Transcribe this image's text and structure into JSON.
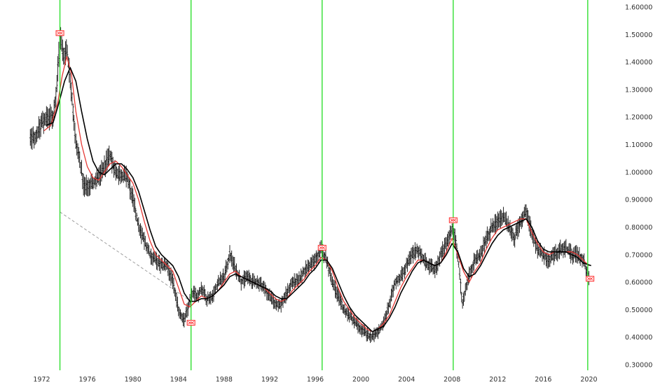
{
  "chart_data": {
    "type": "line",
    "title": "",
    "xlabel": "",
    "ylabel": "",
    "x_ticks": [
      "1972",
      "1976",
      "1980",
      "1984",
      "1988",
      "1992",
      "1996",
      "2000",
      "2004",
      "2008",
      "2012",
      "2016",
      "2020"
    ],
    "y_ticks": [
      "0.300000",
      "0.400000",
      "0.500000",
      "0.600000",
      "0.700000",
      "0.800000",
      "0.900000",
      "1.000000",
      "1.100000",
      "1.200000",
      "1.300000",
      "1.400000",
      "1.500000",
      "1.600000"
    ],
    "xlim": [
      1970.8,
      2021.2
    ],
    "ylim": [
      0.3,
      1.6
    ],
    "grid": false,
    "legend": "none",
    "colors": {
      "price": "#111111",
      "fast_ma": "#e53935",
      "slow_ma": "#000000",
      "cycle_lines": "#22dd22",
      "trendline": "#9e9e9e",
      "markers": "#ff3333"
    },
    "series": [
      {
        "role": "price",
        "x": [
          1971.0,
          1971.5,
          1972.0,
          1972.5,
          1973.0,
          1973.3,
          1973.6,
          1973.9,
          1974.2,
          1974.6,
          1975.0,
          1975.3,
          1975.7,
          1976.0,
          1976.5,
          1977.0,
          1977.5,
          1978.0,
          1978.5,
          1979.0,
          1979.5,
          1980.0,
          1980.5,
          1981.0,
          1981.5,
          1982.0,
          1982.5,
          1983.0,
          1983.5,
          1984.0,
          1984.5,
          1985.0,
          1985.3,
          1985.7,
          1986.0,
          1986.5,
          1987.0,
          1987.5,
          1988.0,
          1988.5,
          1989.0,
          1989.5,
          1990.0,
          1990.5,
          1991.0,
          1991.5,
          1992.0,
          1992.5,
          1993.0,
          1993.5,
          1994.0,
          1994.5,
          1995.0,
          1995.5,
          1996.0,
          1996.5,
          1997.0,
          1997.5,
          1998.0,
          1998.5,
          1999.0,
          1999.5,
          2000.0,
          2000.5,
          2001.0,
          2001.5,
          2002.0,
          2002.5,
          2003.0,
          2003.5,
          2004.0,
          2004.5,
          2005.0,
          2005.5,
          2006.0,
          2006.5,
          2007.0,
          2007.5,
          2008.0,
          2008.3,
          2008.6,
          2008.9,
          2009.2,
          2009.6,
          2010.0,
          2010.5,
          2011.0,
          2011.5,
          2012.0,
          2012.5,
          2013.0,
          2013.5,
          2014.0,
          2014.5,
          2015.0,
          2015.5,
          2016.0,
          2016.5,
          2017.0,
          2017.5,
          2018.0,
          2018.5,
          2019.0,
          2019.5,
          2020.0
        ],
        "y": [
          1.12,
          1.13,
          1.18,
          1.2,
          1.2,
          1.3,
          1.5,
          1.42,
          1.45,
          1.3,
          1.1,
          1.05,
          0.95,
          0.95,
          0.96,
          0.98,
          1.02,
          1.06,
          1.0,
          0.99,
          0.98,
          0.9,
          0.8,
          0.75,
          0.7,
          0.68,
          0.66,
          0.66,
          0.6,
          0.5,
          0.46,
          0.53,
          0.56,
          0.55,
          0.58,
          0.54,
          0.55,
          0.6,
          0.62,
          0.7,
          0.65,
          0.6,
          0.62,
          0.6,
          0.6,
          0.58,
          0.55,
          0.52,
          0.52,
          0.56,
          0.6,
          0.6,
          0.64,
          0.66,
          0.68,
          0.72,
          0.68,
          0.6,
          0.55,
          0.5,
          0.48,
          0.45,
          0.43,
          0.41,
          0.4,
          0.42,
          0.45,
          0.52,
          0.6,
          0.62,
          0.66,
          0.7,
          0.72,
          0.68,
          0.66,
          0.64,
          0.7,
          0.74,
          0.8,
          0.75,
          0.66,
          0.52,
          0.58,
          0.64,
          0.68,
          0.7,
          0.76,
          0.8,
          0.82,
          0.84,
          0.8,
          0.76,
          0.82,
          0.86,
          0.78,
          0.72,
          0.7,
          0.68,
          0.7,
          0.72,
          0.72,
          0.7,
          0.7,
          0.68,
          0.62
        ]
      },
      {
        "role": "fast_ma",
        "x": [
          1972.2,
          1972.8,
          1973.4,
          1973.8,
          1974.2,
          1974.6,
          1975.0,
          1975.5,
          1976.0,
          1976.5,
          1977.0,
          1977.5,
          1978.0,
          1978.5,
          1979.0,
          1979.5,
          1980.0,
          1980.5,
          1981.0,
          1981.5,
          1982.0,
          1982.5,
          1983.0,
          1983.5,
          1984.0,
          1984.5,
          1985.0,
          1985.5,
          1986.0,
          1986.5,
          1987.0,
          1987.5,
          1988.0,
          1988.5,
          1989.0,
          1989.5,
          1990.0,
          1990.5,
          1991.0,
          1991.5,
          1992.0,
          1992.5,
          1993.0,
          1993.5,
          1994.0,
          1994.5,
          1995.0,
          1995.5,
          1996.0,
          1996.5,
          1997.0,
          1997.5,
          1998.0,
          1998.5,
          1999.0,
          1999.5,
          2000.0,
          2000.5,
          2001.0,
          2001.5,
          2002.0,
          2002.5,
          2003.0,
          2003.5,
          2004.0,
          2004.5,
          2005.0,
          2005.5,
          2006.0,
          2006.5,
          2007.0,
          2007.5,
          2008.0,
          2008.5,
          2009.0,
          2009.5,
          2010.0,
          2010.5,
          2011.0,
          2011.5,
          2012.0,
          2012.5,
          2013.0,
          2013.5,
          2014.0,
          2014.5,
          2015.0,
          2015.5,
          2016.0,
          2016.5,
          2017.0,
          2017.5,
          2018.0,
          2018.5,
          2019.0,
          2019.5,
          2020.0
        ],
        "y": [
          1.15,
          1.17,
          1.25,
          1.35,
          1.42,
          1.36,
          1.22,
          1.1,
          1.02,
          0.98,
          0.97,
          1.0,
          1.03,
          1.04,
          1.02,
          0.99,
          0.96,
          0.9,
          0.82,
          0.75,
          0.7,
          0.68,
          0.66,
          0.64,
          0.58,
          0.52,
          0.51,
          0.53,
          0.55,
          0.54,
          0.55,
          0.57,
          0.6,
          0.63,
          0.64,
          0.62,
          0.61,
          0.6,
          0.59,
          0.58,
          0.56,
          0.54,
          0.53,
          0.54,
          0.57,
          0.59,
          0.61,
          0.64,
          0.66,
          0.69,
          0.68,
          0.64,
          0.58,
          0.53,
          0.5,
          0.47,
          0.45,
          0.43,
          0.42,
          0.43,
          0.45,
          0.48,
          0.53,
          0.58,
          0.62,
          0.65,
          0.68,
          0.68,
          0.67,
          0.66,
          0.67,
          0.71,
          0.76,
          0.7,
          0.64,
          0.6,
          0.64,
          0.67,
          0.72,
          0.76,
          0.79,
          0.8,
          0.81,
          0.82,
          0.83,
          0.83,
          0.78,
          0.74,
          0.71,
          0.7,
          0.71,
          0.71,
          0.71,
          0.71,
          0.7,
          0.68,
          0.66
        ]
      },
      {
        "role": "slow_ma",
        "x": [
          1972.4,
          1973.0,
          1973.5,
          1974.0,
          1974.5,
          1975.0,
          1975.5,
          1976.0,
          1976.5,
          1977.0,
          1977.5,
          1978.0,
          1978.5,
          1979.0,
          1979.5,
          1980.0,
          1980.5,
          1981.0,
          1981.5,
          1982.0,
          1982.5,
          1983.0,
          1983.5,
          1984.0,
          1984.5,
          1985.0,
          1985.5,
          1986.0,
          1986.5,
          1987.0,
          1987.5,
          1988.0,
          1988.5,
          1989.0,
          1989.5,
          1990.0,
          1990.5,
          1991.0,
          1991.5,
          1992.0,
          1992.5,
          1993.0,
          1993.5,
          1994.0,
          1994.5,
          1995.0,
          1995.5,
          1996.0,
          1996.5,
          1997.0,
          1997.5,
          1998.0,
          1998.5,
          1999.0,
          1999.5,
          2000.0,
          2000.5,
          2001.0,
          2001.5,
          2002.0,
          2002.5,
          2003.0,
          2003.5,
          2004.0,
          2004.5,
          2005.0,
          2005.5,
          2006.0,
          2006.5,
          2007.0,
          2007.5,
          2008.0,
          2008.5,
          2009.0,
          2009.5,
          2010.0,
          2010.5,
          2011.0,
          2011.5,
          2012.0,
          2012.5,
          2013.0,
          2013.5,
          2014.0,
          2014.5,
          2015.0,
          2015.5,
          2016.0,
          2016.5,
          2017.0,
          2017.5,
          2018.0,
          2018.5,
          2019.0,
          2019.5,
          2020.2
        ],
        "y": [
          1.17,
          1.18,
          1.25,
          1.33,
          1.38,
          1.33,
          1.22,
          1.12,
          1.04,
          1.0,
          0.99,
          1.01,
          1.03,
          1.03,
          1.01,
          0.98,
          0.93,
          0.86,
          0.79,
          0.73,
          0.7,
          0.68,
          0.66,
          0.62,
          0.56,
          0.53,
          0.53,
          0.54,
          0.54,
          0.55,
          0.57,
          0.59,
          0.62,
          0.63,
          0.62,
          0.61,
          0.6,
          0.59,
          0.58,
          0.57,
          0.55,
          0.54,
          0.54,
          0.56,
          0.58,
          0.6,
          0.63,
          0.65,
          0.68,
          0.68,
          0.65,
          0.6,
          0.55,
          0.51,
          0.48,
          0.46,
          0.44,
          0.42,
          0.43,
          0.44,
          0.47,
          0.51,
          0.56,
          0.6,
          0.64,
          0.67,
          0.68,
          0.67,
          0.66,
          0.67,
          0.7,
          0.74,
          0.71,
          0.65,
          0.62,
          0.63,
          0.66,
          0.7,
          0.74,
          0.77,
          0.79,
          0.8,
          0.81,
          0.82,
          0.83,
          0.8,
          0.75,
          0.72,
          0.71,
          0.71,
          0.71,
          0.71,
          0.7,
          0.69,
          0.67,
          0.66
        ]
      }
    ],
    "cycle_lines_x": [
      1973.6,
      1985.1,
      1996.6,
      2008.1,
      2019.9
    ],
    "trendline": {
      "from": [
        1973.6,
        0.855
      ],
      "to": [
        1985.1,
        0.53
      ]
    },
    "markers": [
      {
        "x": 1973.6,
        "y": 1.5,
        "side": "above"
      },
      {
        "x": 1985.1,
        "y": 0.46,
        "side": "below"
      },
      {
        "x": 1996.6,
        "y": 0.72,
        "side": "above"
      },
      {
        "x": 2008.1,
        "y": 0.82,
        "side": "above"
      },
      {
        "x": 2020.1,
        "y": 0.62,
        "side": "below"
      }
    ]
  }
}
